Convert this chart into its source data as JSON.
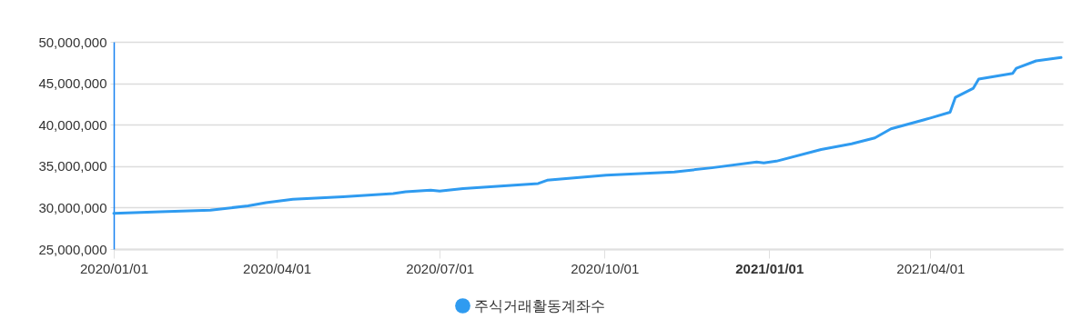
{
  "chart_data": {
    "type": "line",
    "x": [
      "2020-01-01",
      "2020-01-27",
      "2020-02-24",
      "2020-03-16",
      "2020-03-26",
      "2020-04-10",
      "2020-05-08",
      "2020-06-05",
      "2020-06-12",
      "2020-06-26",
      "2020-07-01",
      "2020-07-14",
      "2020-08-25",
      "2020-08-30",
      "2020-10-02",
      "2020-11-09",
      "2020-11-30",
      "2020-12-25",
      "2020-12-29",
      "2021-01-05",
      "2021-01-30",
      "2021-02-16",
      "2021-03-01",
      "2021-03-10",
      "2021-04-01",
      "2021-04-12",
      "2021-04-15",
      "2021-04-25",
      "2021-04-28",
      "2021-05-17",
      "2021-05-19",
      "2021-05-30",
      "2021-06-13"
    ],
    "series": [
      {
        "name": "주식거래활동계좌수",
        "color": "#2f9bf0",
        "values": [
          29300000,
          29500000,
          29700000,
          30200000,
          30600000,
          31000000,
          31300000,
          31700000,
          31900000,
          32100000,
          32000000,
          32300000,
          32900000,
          33300000,
          33900000,
          34300000,
          34800000,
          35500000,
          35400000,
          35600000,
          37000000,
          37700000,
          38400000,
          39500000,
          40800000,
          41500000,
          43300000,
          44400000,
          45500000,
          46200000,
          46800000,
          47700000,
          48100000
        ]
      }
    ],
    "xlim": [
      "2020-01-01",
      "2021-06-14"
    ],
    "xticks": [
      {
        "value": "2020-01-01",
        "label": "2020/01/01"
      },
      {
        "value": "2020-04-01",
        "label": "2020/04/01"
      },
      {
        "value": "2020-07-01",
        "label": "2020/07/01"
      },
      {
        "value": "2020-10-01",
        "label": "2020/10/01"
      },
      {
        "value": "2021-01-01",
        "label": "2021/01/01"
      },
      {
        "value": "2021-04-01",
        "label": "2021/04/01"
      }
    ],
    "ylim": [
      25000000,
      50000000
    ],
    "yticks": [
      {
        "value": 25000000,
        "label": "25,000,000"
      },
      {
        "value": 30000000,
        "label": "30,000,000"
      },
      {
        "value": 35000000,
        "label": "35,000,000"
      },
      {
        "value": 40000000,
        "label": "40,000,000"
      },
      {
        "value": 45000000,
        "label": "45,000,000"
      },
      {
        "value": 50000000,
        "label": "50,000,000"
      }
    ],
    "grid": "y",
    "legend": "bottom",
    "marker": "none",
    "line_style": "solid"
  }
}
